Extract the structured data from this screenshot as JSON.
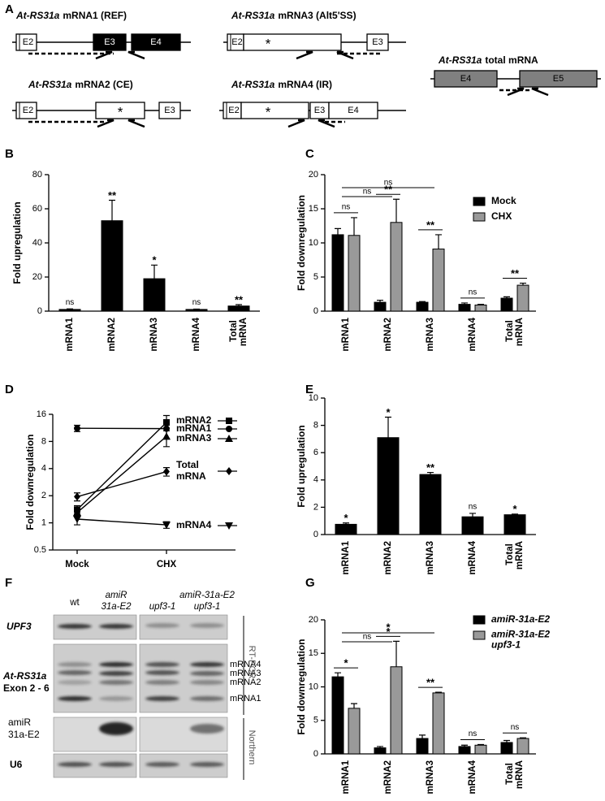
{
  "panel_labels": {
    "a": "A",
    "b": "B",
    "c": "C",
    "d": "D",
    "e": "E",
    "f": "F",
    "g": "G"
  },
  "transcripts": [
    {
      "gene": "At-RS31a",
      "name": "mRNA1 (REF)",
      "exons": [
        "E2",
        "E3",
        "E4"
      ]
    },
    {
      "gene": "At-RS31a",
      "name": "mRNA3 (Alt5'SS)",
      "exons": [
        "E2",
        "*",
        "E3"
      ]
    },
    {
      "gene": "At-RS31a",
      "name": "total mRNA",
      "exons": [
        "E4",
        "E5"
      ]
    },
    {
      "gene": "At-RS31a",
      "name": "mRNA2 (CE)",
      "exons": [
        "E2",
        "*",
        "E3"
      ]
    },
    {
      "gene": "At-RS31a",
      "name": "mRNA4 (IR)",
      "exons": [
        "E2",
        "*",
        "E3",
        "E4"
      ]
    }
  ],
  "gel": {
    "columns": [
      [
        "wt"
      ],
      [
        "amiR",
        "31a-E2"
      ],
      [
        "upf3-1"
      ],
      [
        "amiR-31a-E2",
        "upf3-1"
      ]
    ],
    "rows": [
      [
        "UPF3"
      ],
      [
        "At-RS31a",
        "Exon 2 - 6"
      ],
      [
        "amiR",
        "31a-E2"
      ],
      [
        "U6"
      ]
    ],
    "bands": [
      "mRNA4",
      "mRNA3",
      "mRNA2",
      "mRNA1"
    ],
    "methods": [
      "RT-PCR",
      "Northern"
    ]
  },
  "chart_data": [
    {
      "type": "bar",
      "y_label": "Fold upregulation",
      "categories": [
        "mRNA1",
        "mRNA2",
        "mRNA3",
        "mRNA4",
        "Total mRNA"
      ],
      "values": [
        1,
        53,
        19,
        1,
        3
      ],
      "errors": [
        0.3,
        12,
        8,
        0.2,
        0.8
      ],
      "significance": [
        "ns",
        "**",
        "*",
        "ns",
        "**"
      ],
      "color": "#000000",
      "ylim": [
        0,
        80
      ],
      "yticks": [
        0,
        20,
        40,
        60,
        80
      ]
    },
    {
      "type": "bar",
      "y_label": "Fold downregulation",
      "categories": [
        "mRNA1",
        "mRNA2",
        "mRNA3",
        "mRNA4",
        "Total mRNA"
      ],
      "series": [
        {
          "name": "Mock",
          "color": "#000000",
          "values": [
            11.2,
            1.3,
            1.3,
            1.0,
            1.9
          ],
          "errors": [
            0.9,
            0.3,
            0.1,
            0.2,
            0.2
          ]
        },
        {
          "name": "CHX",
          "color": "#999999",
          "values": [
            11.1,
            13,
            9.1,
            0.9,
            3.8
          ],
          "errors": [
            2.6,
            3.4,
            2.1,
            0.1,
            0.3
          ]
        }
      ],
      "significance": [
        "ns",
        "**",
        "**",
        "ns",
        "**"
      ],
      "comparisons": [
        {
          "between": [
            "mRNA1",
            "mRNA2"
          ],
          "label": "ns"
        },
        {
          "between": [
            "mRNA1",
            "mRNA3"
          ],
          "label": "ns"
        }
      ],
      "legend": "upper right",
      "ylim": [
        0,
        20
      ],
      "yticks": [
        0,
        5,
        10,
        15,
        20
      ]
    },
    {
      "type": "line",
      "y_label": "Fold downregulation",
      "categories": [
        "Mock",
        "CHX"
      ],
      "yscale": "log",
      "color": "#000000",
      "series": [
        {
          "name": "mRNA2",
          "marker": "square",
          "values": [
            1.4,
            13
          ],
          "errors": [
            0.15,
            2.5
          ]
        },
        {
          "name": "mRNA1",
          "marker": "circle",
          "values": [
            11.2,
            11.1
          ],
          "errors": [
            0.9,
            2.6
          ]
        },
        {
          "name": "mRNA3",
          "marker": "triangle",
          "values": [
            1.3,
            9.1
          ],
          "errors": [
            0.1,
            2.1
          ]
        },
        {
          "name": "Total mRNA",
          "marker": "diamond",
          "values": [
            1.95,
            3.7
          ],
          "errors": [
            0.2,
            0.4
          ]
        },
        {
          "name": "mRNA4",
          "marker": "triangle-down",
          "values": [
            1.1,
            0.95
          ],
          "errors": [
            0.15,
            0.08
          ]
        }
      ],
      "ylim": [
        0.5,
        16
      ],
      "yticks": [
        0.5,
        1,
        2,
        4,
        8,
        16
      ]
    },
    {
      "type": "bar",
      "y_label": "Fold upregulation",
      "categories": [
        "mRNA1",
        "mRNA2",
        "mRNA3",
        "mRNA4",
        "Total mRNA"
      ],
      "values": [
        0.75,
        7.1,
        4.4,
        1.3,
        1.45
      ],
      "errors": [
        0.1,
        1.5,
        0.15,
        0.25,
        0.05
      ],
      "significance": [
        "*",
        "*",
        "**",
        "ns",
        "*"
      ],
      "color": "#000000",
      "ylim": [
        0,
        10
      ],
      "yticks": [
        0,
        2,
        4,
        6,
        8,
        10
      ]
    },
    {
      "type": "bar",
      "y_label": "Fold downregulation",
      "categories": [
        "mRNA1",
        "mRNA2",
        "mRNA3",
        "mRNA4",
        "Total mRNA"
      ],
      "series": [
        {
          "name": "amiR-31a-E2",
          "color": "#000000",
          "values": [
            11.5,
            0.9,
            2.3,
            1.1,
            1.7
          ],
          "errors": [
            0.6,
            0.2,
            0.5,
            0.2,
            0.3
          ]
        },
        {
          "name": "amiR-31a-E2 upf3-1",
          "color": "#999999",
          "values": [
            6.8,
            13,
            9.1,
            1.3,
            2.3
          ],
          "errors": [
            0.7,
            3.8,
            0.1,
            0.1,
            0.1
          ]
        }
      ],
      "significance": [
        "*",
        "*",
        "**",
        "ns",
        "ns"
      ],
      "comparisons": [
        {
          "between": [
            "mRNA1",
            "mRNA2"
          ],
          "label": "ns"
        },
        {
          "between": [
            "mRNA1",
            "mRNA3"
          ],
          "label": "*"
        }
      ],
      "legend": "upper right",
      "ylim": [
        0,
        20
      ],
      "yticks": [
        0,
        5,
        10,
        15,
        20
      ]
    }
  ]
}
